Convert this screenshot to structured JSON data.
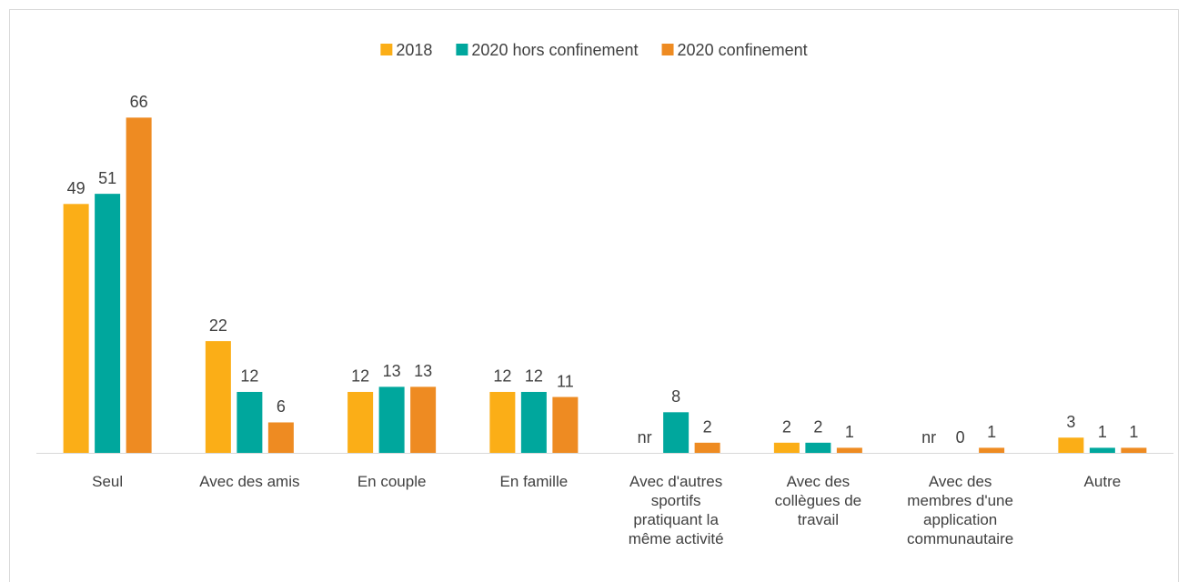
{
  "chart_data": {
    "type": "bar",
    "categories": [
      "Seul",
      "Avec des amis",
      "En couple",
      "En famille",
      "Avec d'autres sportifs pratiquant la même activité",
      "Avec des collègues de travail",
      "Avec des membres d'une application communautaire",
      "Autre"
    ],
    "series": [
      {
        "name": "2018",
        "color": "#fbae17",
        "values": [
          49,
          22,
          12,
          12,
          null,
          2,
          null,
          3
        ],
        "value_labels": [
          "49",
          "22",
          "12",
          "12",
          "nr",
          "2",
          "nr",
          "3"
        ]
      },
      {
        "name": "2020 hors confinement",
        "color": "#00a79d",
        "values": [
          51,
          12,
          13,
          12,
          8,
          2,
          0,
          1
        ]
      },
      {
        "name": "2020 confinement",
        "color": "#ee8b22",
        "values": [
          66,
          6,
          13,
          11,
          2,
          1,
          1,
          1
        ]
      }
    ],
    "ylim": [
      0,
      70
    ],
    "legend": "top"
  }
}
